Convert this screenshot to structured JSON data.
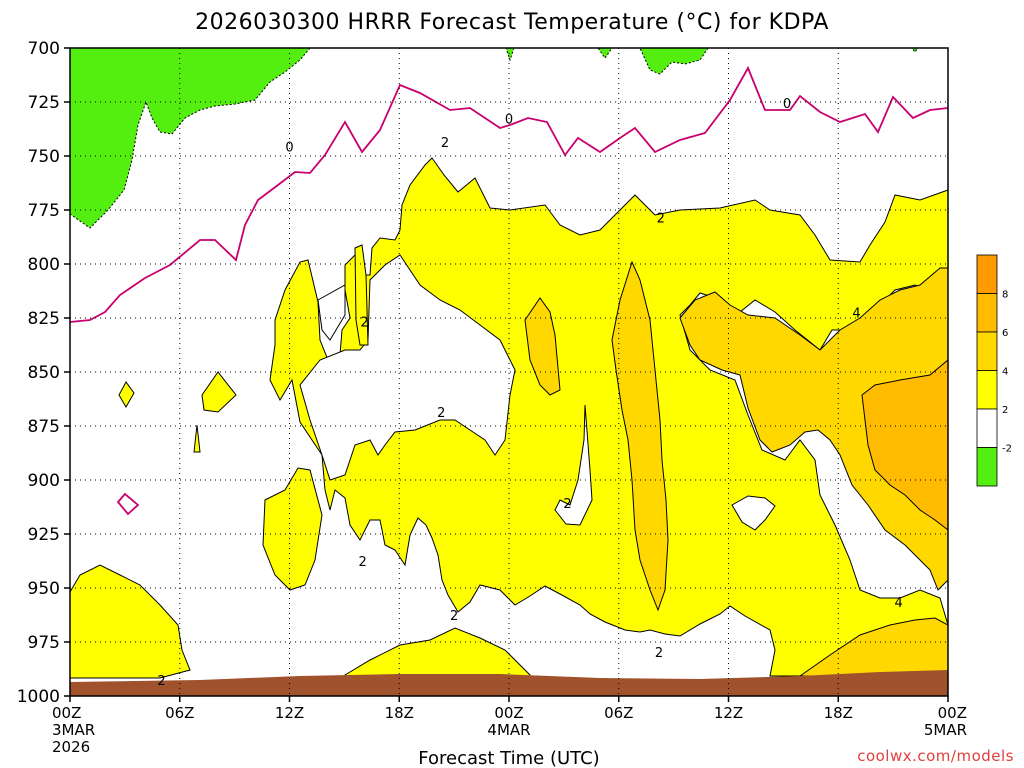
{
  "chart_data": {
    "type": "contour",
    "title": "2026030300 HRRR Forecast Temperature (°C) for KDPA",
    "xlabel": "Forecast Time (UTC)",
    "ylabel": "",
    "credit": "coolwx.com/models",
    "x_hours_range": [
      0,
      48
    ],
    "y_pressure_range": [
      700,
      1000
    ],
    "y_ticks": [
      "700",
      "725",
      "750",
      "775",
      "800",
      "825",
      "850",
      "875",
      "900",
      "925",
      "950",
      "975",
      "1000"
    ],
    "x_ticks": [
      {
        "hour": 0,
        "label": "00Z",
        "sub1": "3MAR",
        "sub2": "2026"
      },
      {
        "hour": 6,
        "label": "06Z"
      },
      {
        "hour": 12,
        "label": "12Z"
      },
      {
        "hour": 18,
        "label": "18Z"
      },
      {
        "hour": 24,
        "label": "00Z",
        "sub1": "4MAR"
      },
      {
        "hour": 30,
        "label": "06Z"
      },
      {
        "hour": 36,
        "label": "12Z"
      },
      {
        "hour": 42,
        "label": "18Z"
      },
      {
        "hour": 48,
        "label": "00Z",
        "sub1": "5MAR"
      }
    ],
    "color_scale": [
      {
        "label": "",
        "range": [
          8,
          10
        ],
        "color": "#ff9a00"
      },
      {
        "label": "8",
        "range": [
          6,
          8
        ],
        "color": "#ffbb00"
      },
      {
        "label": "6",
        "range": [
          4,
          6
        ],
        "color": "#ffd800"
      },
      {
        "label": "4",
        "range": [
          2,
          4
        ],
        "color": "#ffff00"
      },
      {
        "label": "2",
        "range": [
          -2,
          2
        ],
        "color": "#ffffff"
      },
      {
        "label": "-2",
        "range": [
          -4,
          -2
        ],
        "color": "#55ee11"
      }
    ],
    "contour_labels": [
      {
        "text": "0",
        "hour": 12,
        "pres": 746
      },
      {
        "text": "0",
        "hour": 24,
        "pres": 733
      },
      {
        "text": "0",
        "hour": 39.2,
        "pres": 726
      },
      {
        "text": "2",
        "hour": 20.5,
        "pres": 744
      },
      {
        "text": "2",
        "hour": 32.3,
        "pres": 779
      },
      {
        "text": "2",
        "hour": 16.1,
        "pres": 827
      },
      {
        "text": "2",
        "hour": 20.3,
        "pres": 869
      },
      {
        "text": "2",
        "hour": 27.2,
        "pres": 911
      },
      {
        "text": "2",
        "hour": 16,
        "pres": 938
      },
      {
        "text": "2",
        "hour": 21,
        "pres": 963
      },
      {
        "text": "2",
        "hour": 32.2,
        "pres": 980
      },
      {
        "text": "2",
        "hour": 5,
        "pres": 993
      },
      {
        "text": "4",
        "hour": 43,
        "pres": 823
      },
      {
        "text": "4",
        "hour": 45.3,
        "pres": 957
      }
    ]
  }
}
